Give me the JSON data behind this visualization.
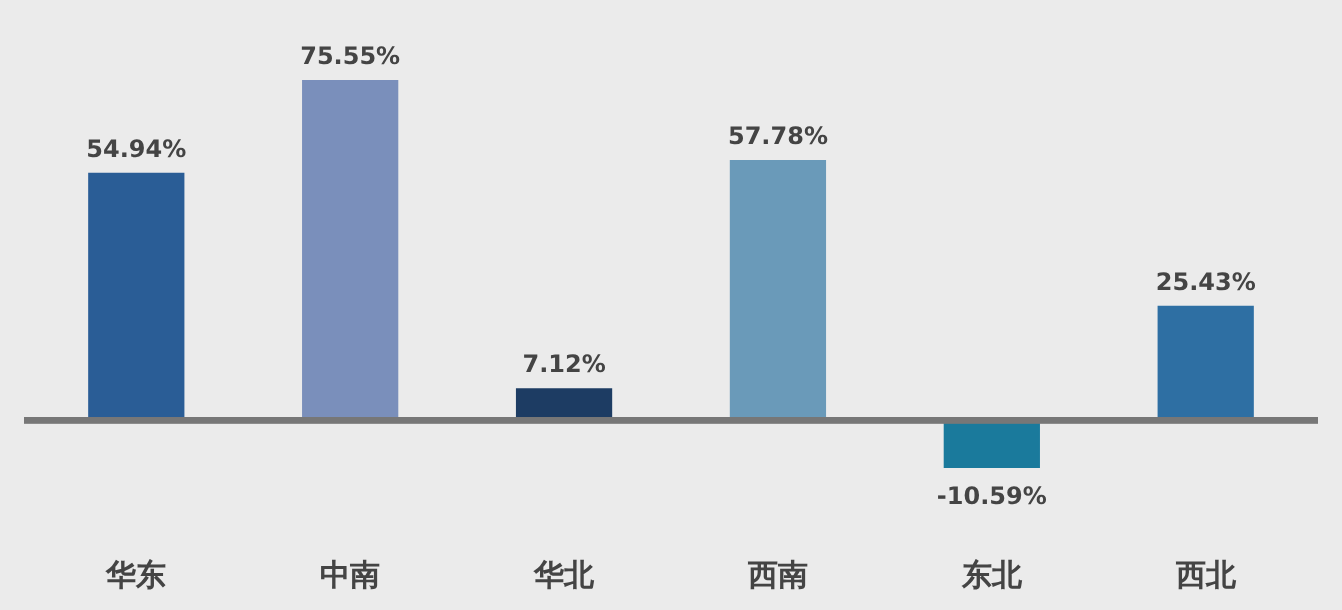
{
  "chart_data": {
    "type": "bar",
    "categories": [
      "华东",
      "中南",
      "华北",
      "西南",
      "东北",
      "西北"
    ],
    "values": [
      54.94,
      75.55,
      7.12,
      57.78,
      -10.59,
      25.43
    ],
    "colors": [
      "#2a5d96",
      "#7a8fbb",
      "#1d3c63",
      "#6a9ab9",
      "#1a7a9c",
      "#2e6fa3"
    ],
    "value_labels": [
      "54.94%",
      "75.55%",
      "7.12%",
      "57.78%",
      "-10.59%",
      "25.43%"
    ]
  }
}
